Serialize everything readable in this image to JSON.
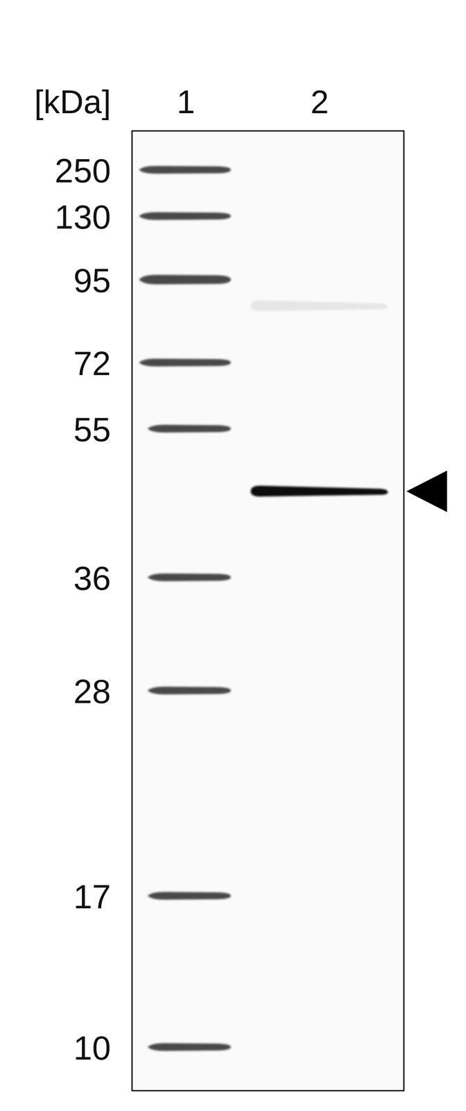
{
  "chart_data": {
    "type": "western_blot",
    "y_label": "[kDa]",
    "lanes": [
      "1",
      "2"
    ],
    "ylim": [
      430,
      8.6
    ],
    "yticks": [
      250,
      130,
      95,
      72,
      55,
      36,
      28,
      17,
      10
    ],
    "bands": [
      46,
      87
    ],
    "band_intensity": [
      1,
      0.08
    ]
  }
}
